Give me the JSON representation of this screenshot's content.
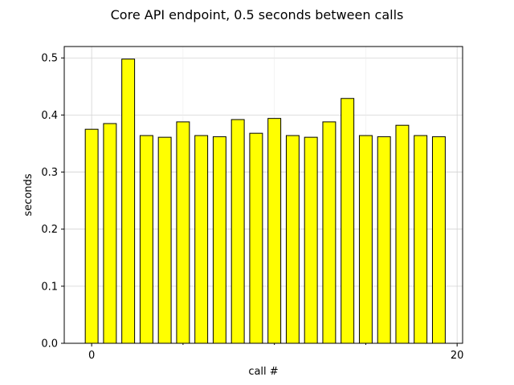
{
  "chart_data": {
    "type": "bar",
    "title": "Core API endpoint, 0.5 seconds between calls",
    "xlabel": "call #",
    "ylabel": "seconds",
    "x": [
      0,
      1,
      2,
      3,
      4,
      5,
      6,
      7,
      8,
      9,
      10,
      11,
      12,
      13,
      14,
      15,
      16,
      17,
      18,
      19
    ],
    "values": [
      0.375,
      0.385,
      0.498,
      0.364,
      0.361,
      0.388,
      0.364,
      0.362,
      0.392,
      0.368,
      0.394,
      0.364,
      0.361,
      0.388,
      0.429,
      0.364,
      0.362,
      0.382,
      0.364,
      0.362
    ],
    "xlim": [
      -1.5,
      20.3
    ],
    "ylim": [
      0,
      0.52
    ],
    "xticks": [
      0,
      20
    ],
    "xticks_minor": [
      5,
      10,
      15
    ],
    "yticks": [
      0.0,
      0.1,
      0.2,
      0.3,
      0.4,
      0.5
    ],
    "grid": true,
    "bar_color": "#ffff00",
    "edge_color": "#000000"
  }
}
